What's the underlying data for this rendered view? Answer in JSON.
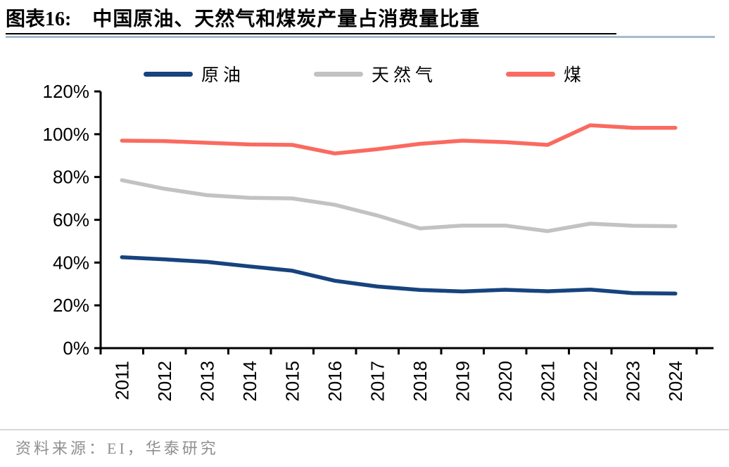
{
  "header": {
    "label": "图表16:",
    "title": "中国原油、天然气和煤炭产量占消费量比重"
  },
  "footer": {
    "source": "资料来源：EI，华泰研究"
  },
  "colors": {
    "oil": "#17437E",
    "gas": "#C2C2C2",
    "coal": "#FA6A60",
    "axis": "#000000",
    "title_rule_black": "#000000",
    "title_rule_blue": "#A6BACF",
    "footer_rule": "#D9D9D9",
    "footer_text": "#8F8F8F"
  },
  "chart_data": {
    "type": "line",
    "title": "中国原油、天然气和煤炭产量占消费量比重",
    "categories": [
      "2011",
      "2012",
      "2013",
      "2014",
      "2015",
      "2016",
      "2017",
      "2018",
      "2019",
      "2020",
      "2021",
      "2022",
      "2023",
      "2024"
    ],
    "series": [
      {
        "name": "原油",
        "color_key": "oil",
        "values": [
          42.5,
          41.5,
          40.3,
          38.2,
          36.2,
          31.5,
          28.8,
          27.2,
          26.5,
          27.3,
          26.6,
          27.4,
          25.7,
          25.5
        ]
      },
      {
        "name": "天然气",
        "color_key": "gas",
        "values": [
          78.5,
          74.5,
          71.5,
          70.3,
          70.0,
          67.0,
          62.0,
          56.0,
          57.3,
          57.3,
          54.7,
          58.2,
          57.2,
          57.0
        ]
      },
      {
        "name": "煤",
        "color_key": "coal",
        "values": [
          97.0,
          96.8,
          96.0,
          95.2,
          95.0,
          91.0,
          93.0,
          95.5,
          97.0,
          96.3,
          95.0,
          104.2,
          103.0,
          103.0
        ]
      }
    ],
    "xlabel": "",
    "ylabel": "",
    "ylim": [
      0,
      120
    ],
    "ytick_step": 20,
    "ytick_labels": [
      "0%",
      "20%",
      "40%",
      "60%",
      "80%",
      "100%",
      "120%"
    ],
    "legend_position": "top",
    "grid": false
  }
}
